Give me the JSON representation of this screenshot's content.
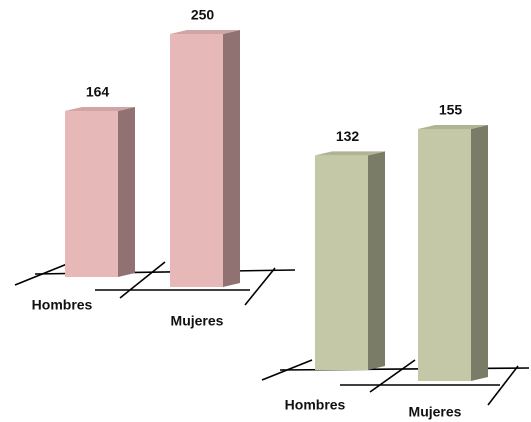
{
  "chart_data": [
    {
      "type": "bar",
      "categories": [
        "Hombres",
        "Mujeres"
      ],
      "values": [
        164,
        250
      ],
      "color": "#e6b8b7"
    },
    {
      "type": "bar",
      "categories": [
        "Hombres",
        "Mujeres"
      ],
      "values": [
        132,
        155
      ],
      "color": "#c4c8a6"
    }
  ]
}
